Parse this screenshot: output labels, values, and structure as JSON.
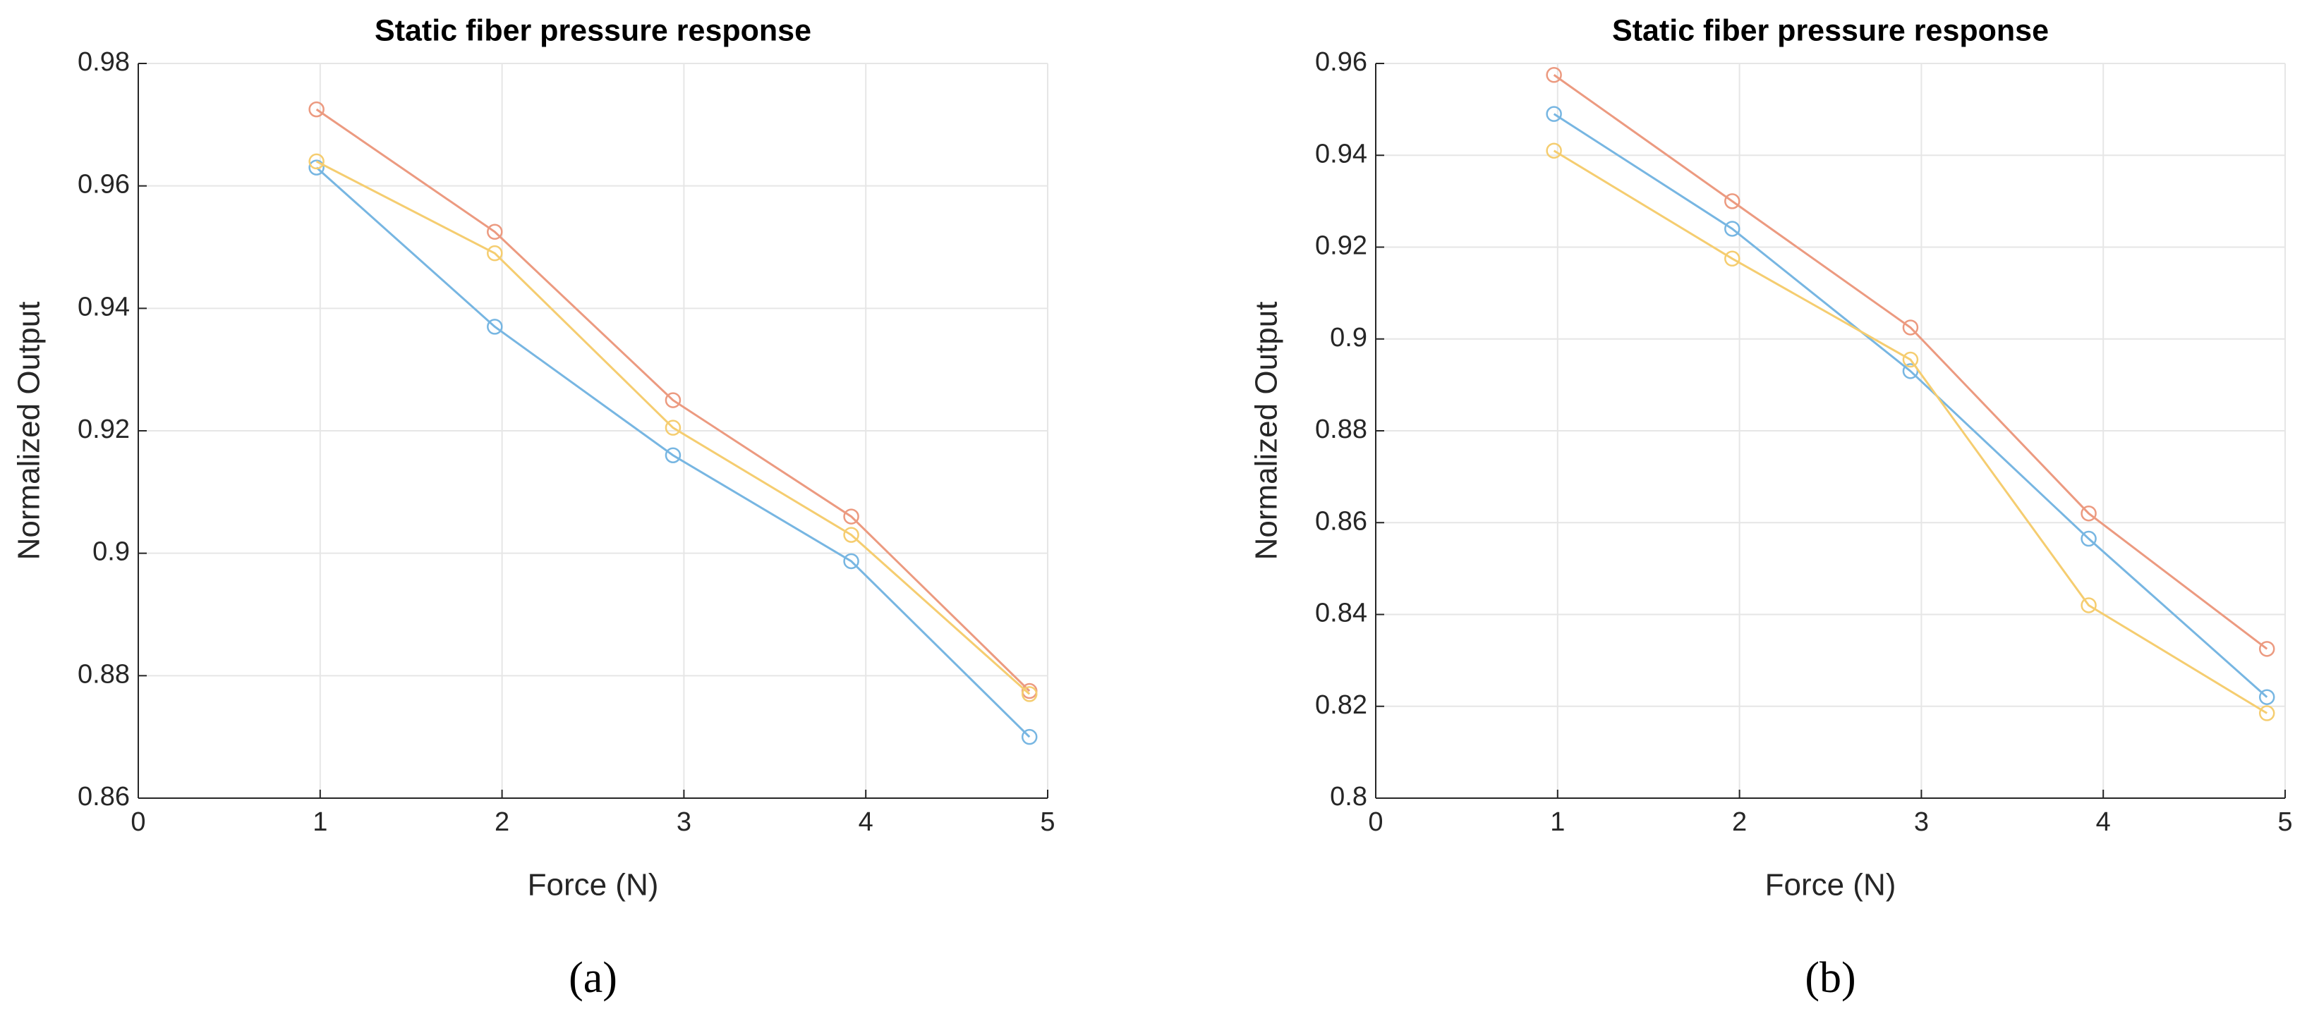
{
  "chart_data": [
    {
      "type": "line",
      "title": "Static fiber pressure response",
      "x_label": "Force (N)",
      "y_label": "Normalized Output",
      "caption": "(a)",
      "x": [
        0.98,
        1.96,
        2.94,
        3.92,
        4.9
      ],
      "series": [
        {
          "color": "#77b6e2",
          "values": [
            0.963,
            0.937,
            0.916,
            0.8987,
            0.87
          ]
        },
        {
          "color": "#ec9a80",
          "values": [
            0.9725,
            0.9525,
            0.925,
            0.906,
            0.8775
          ]
        },
        {
          "color": "#f5cd70",
          "values": [
            0.964,
            0.949,
            0.9205,
            0.903,
            0.877
          ]
        }
      ],
      "xlim": [
        0,
        5
      ],
      "xticks": [
        0,
        1,
        2,
        3,
        4,
        5
      ],
      "ylim": [
        0.86,
        0.98
      ],
      "yticks": [
        0.86,
        0.88,
        0.9,
        0.92,
        0.94,
        0.96,
        0.98
      ],
      "grid": true
    },
    {
      "type": "line",
      "title": "Static fiber pressure response",
      "x_label": "Force (N)",
      "y_label": "Normalized Output",
      "caption": "(b)",
      "x": [
        0.98,
        1.96,
        2.94,
        3.92,
        4.9
      ],
      "series": [
        {
          "color": "#77b6e2",
          "values": [
            0.949,
            0.924,
            0.893,
            0.8565,
            0.822
          ]
        },
        {
          "color": "#ec9a80",
          "values": [
            0.9575,
            0.93,
            0.9025,
            0.862,
            0.8325
          ]
        },
        {
          "color": "#f5cd70",
          "values": [
            0.941,
            0.9175,
            0.8955,
            0.842,
            0.8185
          ]
        }
      ],
      "xlim": [
        0,
        5
      ],
      "xticks": [
        0,
        1,
        2,
        3,
        4,
        5
      ],
      "ylim": [
        0.8,
        0.96
      ],
      "yticks": [
        0.8,
        0.82,
        0.84,
        0.86,
        0.88,
        0.9,
        0.92,
        0.94,
        0.96
      ],
      "grid": true
    }
  ]
}
